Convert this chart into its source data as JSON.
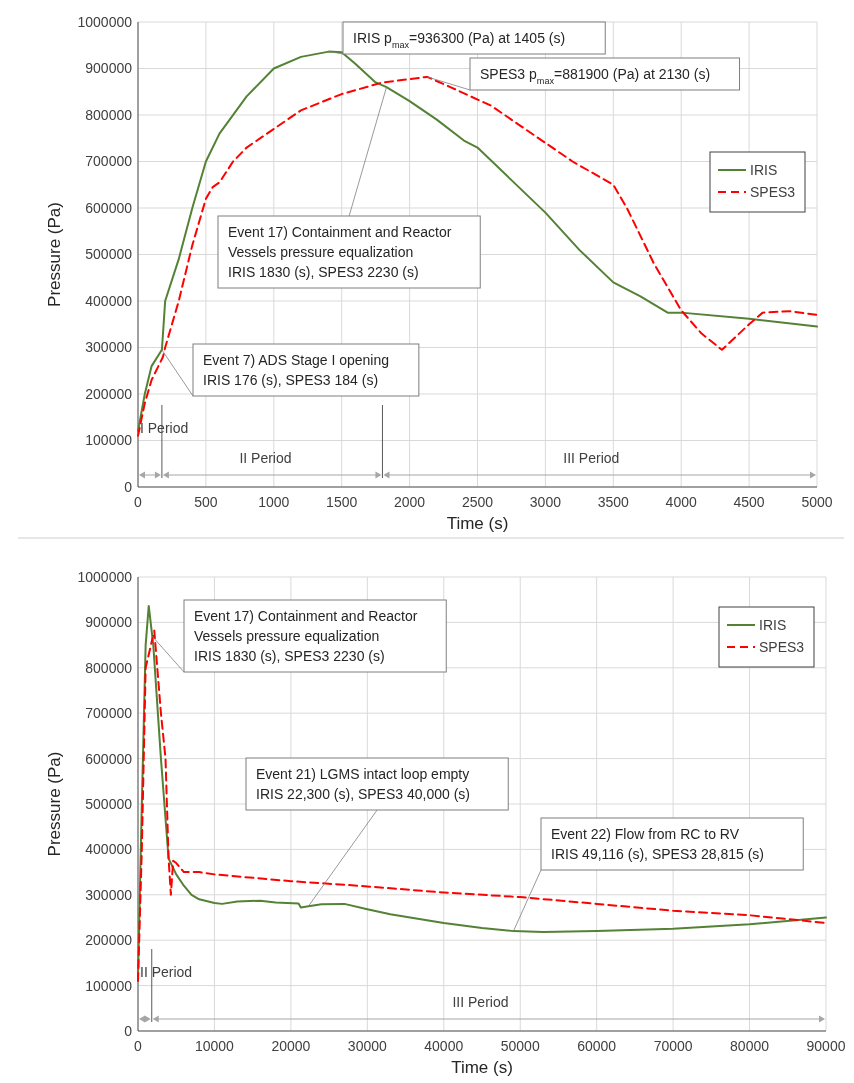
{
  "chart_data": [
    {
      "type": "line",
      "xlabel": "Time (s)",
      "ylabel": "Pressure (Pa)",
      "xlim": [
        0,
        5000
      ],
      "xticks": [
        0,
        500,
        1000,
        1500,
        2000,
        2500,
        3000,
        3500,
        4000,
        4500,
        5000
      ],
      "ylim": [
        0,
        1000000
      ],
      "yticks": [
        0,
        100000,
        200000,
        300000,
        400000,
        500000,
        600000,
        700000,
        800000,
        900000,
        1000000
      ],
      "grid": true,
      "legend": "top right",
      "marker": "none",
      "series": [
        {
          "name": "IRIS",
          "color": "#548235",
          "line_style": "solid",
          "x": [
            0,
            50,
            100,
            176,
            200,
            300,
            400,
            500,
            600,
            800,
            1000,
            1200,
            1405,
            1500,
            1600,
            1750,
            1830,
            2000,
            2200,
            2400,
            2500,
            2750,
            3000,
            3250,
            3500,
            3700,
            3900,
            4000,
            4500,
            5000
          ],
          "values": [
            120000,
            200000,
            260000,
            295000,
            400000,
            490000,
            600000,
            700000,
            760000,
            840000,
            900000,
            925000,
            936300,
            935000,
            910000,
            870000,
            860000,
            830000,
            790000,
            745000,
            730000,
            660000,
            590000,
            510000,
            440000,
            410000,
            375000,
            375000,
            362000,
            345000
          ]
        },
        {
          "name": "SPES3",
          "color": "#ff0000",
          "line_style": "dashed",
          "x": [
            0,
            50,
            100,
            184,
            200,
            300,
            400,
            500,
            550,
            600,
            700,
            800,
            1000,
            1200,
            1500,
            1800,
            2130,
            2300,
            2600,
            2800,
            3000,
            3200,
            3500,
            3600,
            3800,
            4000,
            4150,
            4300,
            4500,
            4600,
            4800,
            5000
          ],
          "values": [
            110000,
            180000,
            230000,
            280000,
            300000,
            400000,
            520000,
            620000,
            645000,
            655000,
            700000,
            730000,
            770000,
            810000,
            845000,
            870000,
            881900,
            860000,
            820000,
            780000,
            740000,
            700000,
            650000,
            600000,
            480000,
            380000,
            330000,
            295000,
            350000,
            375000,
            378000,
            370000
          ]
        }
      ],
      "ref_lines": [
        {
          "axis": "x",
          "value": 176
        },
        {
          "axis": "x",
          "value": 1800
        }
      ],
      "annotations": [
        {
          "text": "IRIS p$_{max}$=936300 (Pa) at 1405 (s)",
          "x": 1405,
          "y": 936300
        },
        {
          "text": "SPES3 p$_{max}$=881900 (Pa) at 2130 (s)",
          "x": 2130,
          "y": 881900
        },
        {
          "text": "Event 17) Containment and Reactor\nVessels pressure equalization\nIRIS 1830 (s), SPES3 2230 (s)",
          "x": 1830,
          "y": 860000
        },
        {
          "text": "Event 7) ADS Stage I opening\nIRIS 176 (s), SPES3 184 (s)",
          "x": 176,
          "y": 295000
        },
        "I Period",
        "II Period",
        "III Period"
      ]
    },
    {
      "type": "line",
      "xlabel": "Time (s)",
      "ylabel": "Pressure (Pa)",
      "xlim": [
        0,
        90000
      ],
      "xticks": [
        0,
        10000,
        20000,
        30000,
        40000,
        50000,
        60000,
        70000,
        80000,
        90000
      ],
      "ylim": [
        0,
        1000000
      ],
      "yticks": [
        0,
        100000,
        200000,
        300000,
        400000,
        500000,
        600000,
        700000,
        800000,
        900000,
        1000000
      ],
      "grid": true,
      "legend": "top right",
      "marker": "none",
      "series": [
        {
          "name": "IRIS",
          "color": "#548235",
          "line_style": "solid",
          "x": [
            0,
            500,
            1000,
            1405,
            2000,
            3000,
            4000,
            5000,
            6000,
            7000,
            8000,
            10000,
            11000,
            13000,
            16000,
            18000,
            21000,
            21300,
            22300,
            24000,
            27000,
            30000,
            33000,
            40000,
            45000,
            49116,
            53000,
            60000,
            70000,
            80000,
            90000
          ],
          "values": [
            120000,
            500000,
            850000,
            936300,
            850000,
            600000,
            380000,
            345000,
            320000,
            300000,
            290000,
            282000,
            280000,
            285000,
            287000,
            283000,
            281000,
            272000,
            275000,
            279000,
            280000,
            268000,
            257000,
            238000,
            227000,
            220000,
            218000,
            220000,
            225000,
            235000,
            250000
          ]
        },
        {
          "name": "SPES3",
          "color": "#ff0000",
          "line_style": "dashed",
          "x": [
            0,
            500,
            1000,
            2130,
            3000,
            3600,
            4000,
            4300,
            4600,
            5000,
            6000,
            8000,
            10000,
            20000,
            28815,
            40000,
            50000,
            60000,
            70000,
            80000,
            90000
          ],
          "values": [
            110000,
            400000,
            800000,
            881900,
            700000,
            600000,
            380000,
            300000,
            375000,
            370000,
            350000,
            350000,
            345000,
            330000,
            320000,
            305000,
            295000,
            280000,
            265000,
            255000,
            238000
          ]
        }
      ],
      "ref_lines": [
        {
          "axis": "x",
          "value": 1800
        }
      ],
      "annotations": [
        {
          "text": "Event 17) Containment and Reactor\nVessels pressure equalization\nIRIS 1830 (s), SPES3 2230 (s)",
          "x": 1830,
          "y": 870000
        },
        {
          "text": "Event 21) LGMS intact loop empty\nIRIS 22,300 (s), SPES3 40,000 (s)",
          "x": 22300,
          "y": 275000
        },
        {
          "text": "Event 22) Flow from RC to RV\nIRIS 49,116 (s), SPES3 28,815 (s)",
          "x": 49116,
          "y": 220000
        },
        "II Period",
        "III Period"
      ]
    }
  ]
}
